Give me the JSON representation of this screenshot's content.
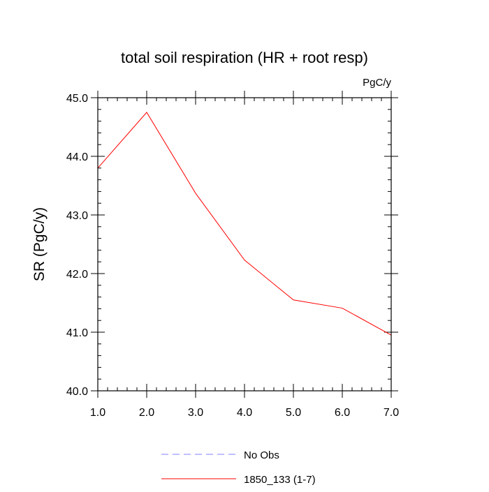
{
  "chart_data": {
    "type": "line",
    "title": "total soil respiration (HR + root resp)",
    "units": "PgC/y",
    "xlabel": "",
    "ylabel": "SR  (PgC/y)",
    "xlim": [
      1.0,
      7.0
    ],
    "ylim": [
      40.0,
      45.0
    ],
    "x_ticks": [
      1.0,
      2.0,
      3.0,
      4.0,
      5.0,
      6.0,
      7.0
    ],
    "x_tick_labels": [
      "1.0",
      "2.0",
      "3.0",
      "4.0",
      "5.0",
      "6.0",
      "7.0"
    ],
    "y_ticks": [
      40.0,
      41.0,
      42.0,
      43.0,
      44.0,
      45.0
    ],
    "y_tick_labels": [
      "40.0",
      "41.0",
      "42.0",
      "43.0",
      "44.0",
      "45.0"
    ],
    "grid": false,
    "legend_position": "bottom-center",
    "series": [
      {
        "name": "No Obs",
        "style": "dashed",
        "color": "#8080ff",
        "x": [],
        "values": []
      },
      {
        "name": "1850_133 (1-7)",
        "style": "solid",
        "color": "#ff0000",
        "x": [
          1.0,
          2.0,
          3.0,
          4.0,
          5.0,
          6.0,
          7.0
        ],
        "values": [
          43.8,
          44.75,
          43.37,
          42.23,
          41.55,
          41.41,
          40.95
        ]
      }
    ]
  }
}
